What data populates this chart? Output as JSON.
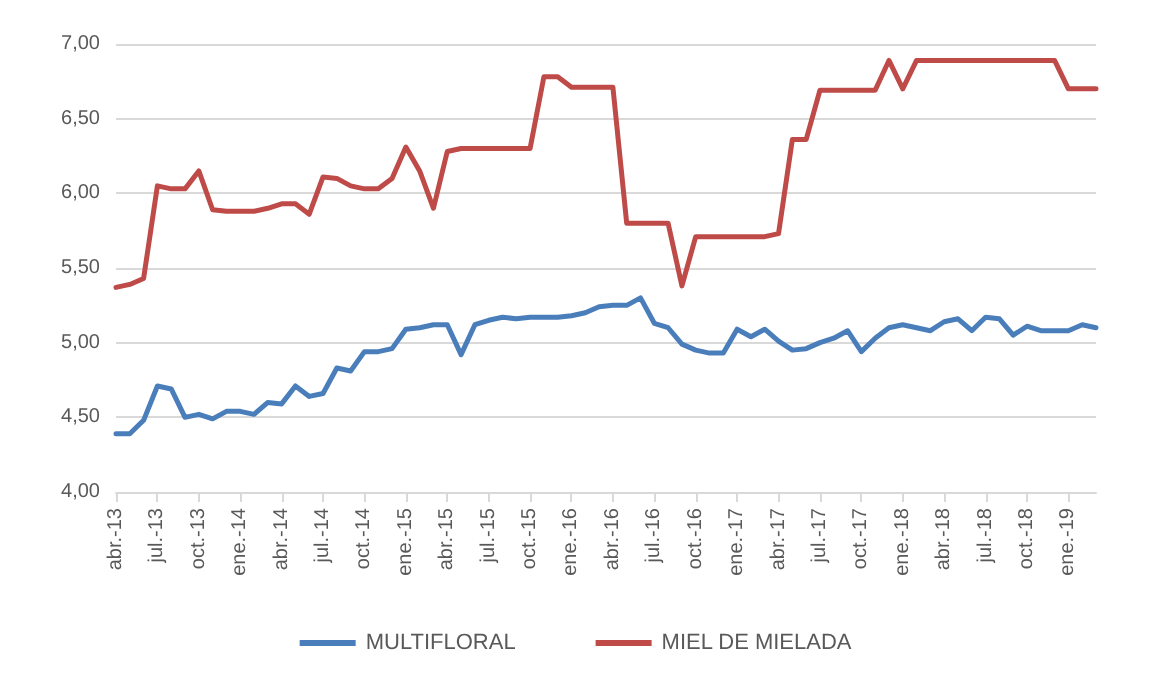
{
  "chart_data": {
    "type": "line",
    "categories": [
      "abr.-13",
      null,
      null,
      "jul.-13",
      null,
      null,
      "oct.-13",
      null,
      null,
      "ene.-14",
      null,
      null,
      "abr.-14",
      null,
      null,
      "jul.-14",
      null,
      null,
      "oct.-14",
      null,
      null,
      "ene.-15",
      null,
      null,
      "abr.-15",
      null,
      null,
      "jul.-15",
      null,
      null,
      "oct.-15",
      null,
      null,
      "ene.-16",
      null,
      null,
      "abr.-16",
      null,
      null,
      "jul.-16",
      null,
      null,
      "oct.-16",
      null,
      null,
      "ene.-17",
      null,
      null,
      "abr.-17",
      null,
      null,
      "jul.-17",
      null,
      null,
      "oct.-17",
      null,
      null,
      "ene.-18",
      null,
      null,
      "abr.-18",
      null,
      null,
      "jul.-18",
      null,
      null,
      "oct.-18",
      null,
      null,
      "ene.-19",
      null,
      null
    ],
    "series": [
      {
        "name": "MULTIFLORAL",
        "color": "#4a7ebb",
        "values": [
          4.39,
          4.39,
          4.48,
          4.71,
          4.69,
          4.5,
          4.52,
          4.49,
          4.54,
          4.54,
          4.52,
          4.6,
          4.59,
          4.71,
          4.64,
          4.66,
          4.83,
          4.81,
          4.94,
          4.94,
          4.96,
          5.09,
          5.1,
          5.12,
          5.12,
          4.92,
          5.12,
          5.15,
          5.17,
          5.16,
          5.17,
          5.17,
          5.17,
          5.18,
          5.2,
          5.24,
          5.25,
          5.25,
          5.3,
          5.13,
          5.1,
          4.99,
          4.95,
          4.93,
          4.93,
          5.09,
          5.04,
          5.09,
          5.01,
          4.95,
          4.96,
          5,
          5.03,
          5.08,
          4.94,
          5.03,
          5.1,
          5.12,
          5.1,
          5.08,
          5.14,
          5.16,
          5.08,
          5.17,
          5.16,
          5.05,
          5.11,
          5.08,
          5.08,
          5.08,
          5.12,
          5.1
        ]
      },
      {
        "name": "MIEL DE MIELADA",
        "color": "#be4b48",
        "values": [
          5.37,
          5.39,
          5.43,
          6.05,
          6.03,
          6.03,
          6.15,
          5.89,
          5.88,
          5.88,
          5.88,
          5.9,
          5.93,
          5.93,
          5.86,
          6.11,
          6.1,
          6.05,
          6.03,
          6.03,
          6.1,
          6.31,
          6.15,
          5.9,
          6.28,
          6.3,
          6.3,
          6.3,
          6.3,
          6.3,
          6.3,
          6.78,
          6.78,
          6.71,
          6.71,
          6.71,
          6.71,
          5.8,
          5.8,
          5.8,
          5.8,
          5.38,
          5.71,
          5.71,
          5.71,
          5.71,
          5.71,
          5.71,
          5.73,
          6.36,
          6.36,
          6.69,
          6.69,
          6.69,
          6.69,
          6.69,
          6.89,
          6.7,
          6.89,
          6.89,
          6.89,
          6.89,
          6.89,
          6.89,
          6.89,
          6.89,
          6.89,
          6.89,
          6.89,
          6.7,
          6.7,
          6.7
        ]
      }
    ],
    "ylim": [
      4,
      7
    ],
    "yticks": [
      {
        "value": 4,
        "label": "4,00"
      },
      {
        "value": 4.5,
        "label": "4,50"
      },
      {
        "value": 5,
        "label": "5,00"
      },
      {
        "value": 5.5,
        "label": "5,50"
      },
      {
        "value": 6,
        "label": "6,00"
      },
      {
        "value": 6.5,
        "label": "6,50"
      },
      {
        "value": 7,
        "label": "7,00"
      }
    ],
    "grid": "y",
    "legend": "bottom",
    "marker": "none",
    "line_style": "solid"
  }
}
